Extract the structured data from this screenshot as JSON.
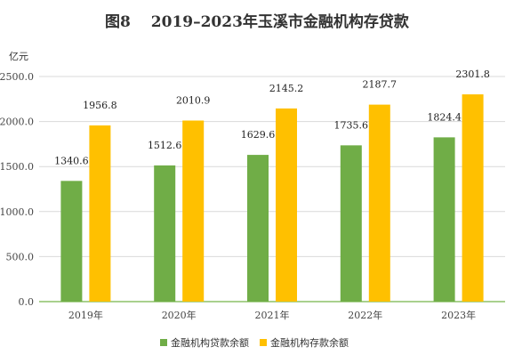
{
  "chart_data": {
    "type": "bar",
    "title": "图8  2019–2023年玉溪市金融机构存贷款",
    "ylabel": "亿元",
    "xlabel": "",
    "categories": [
      "2019年",
      "2020年",
      "2021年",
      "2022年",
      "2023年"
    ],
    "y_ticks": [
      "0.0",
      "500.0",
      "1000.0",
      "1500.0",
      "2000.0",
      "2500.0"
    ],
    "ylim": [
      0,
      2500
    ],
    "grid": true,
    "legend_position": "bottom",
    "series": [
      {
        "name": "金融机构贷款余额",
        "color": "#70ad47",
        "values": [
          1340.6,
          1512.6,
          1629.6,
          1735.6,
          1824.4
        ],
        "labels": [
          "1340.6",
          "1512.6",
          "1629.6",
          "1735.6",
          "1824.4"
        ]
      },
      {
        "name": "金融机构存款余额",
        "color": "#ffc000",
        "values": [
          1956.8,
          2010.9,
          2145.2,
          2187.7,
          2301.8
        ],
        "labels": [
          "1956.8",
          "2010.9",
          "2145.2",
          "2187.7",
          "2301.8"
        ]
      }
    ]
  }
}
